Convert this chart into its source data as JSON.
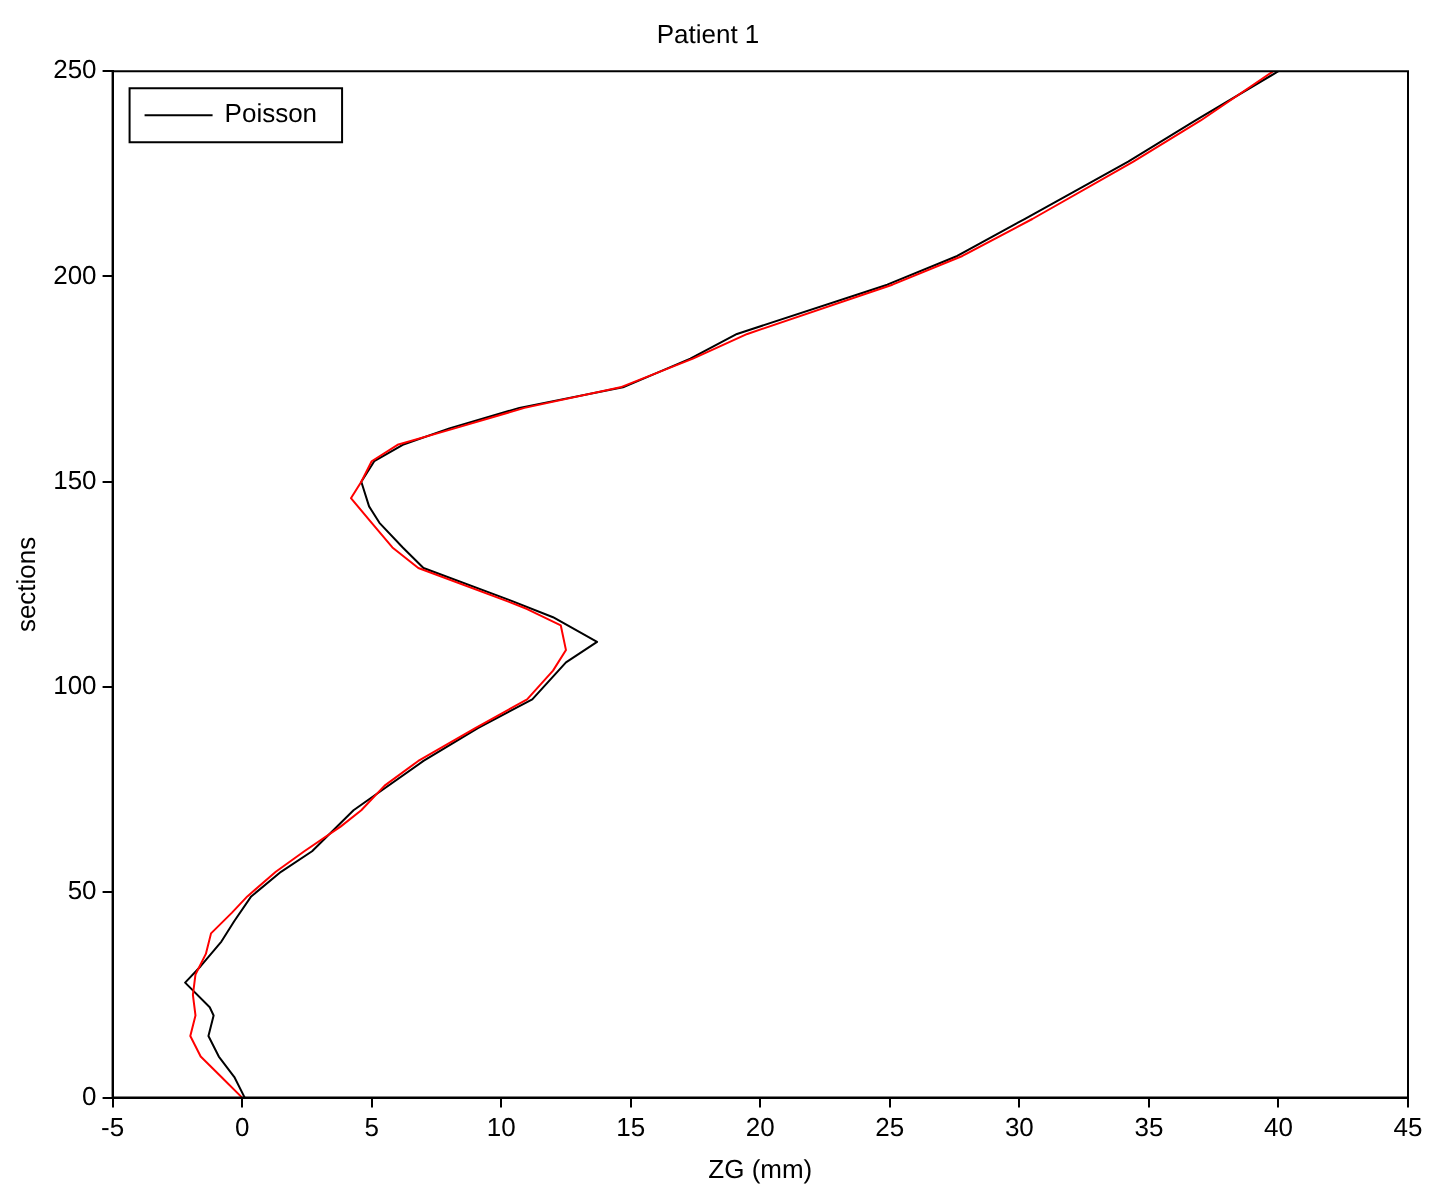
{
  "chart_data": {
    "type": "line",
    "title": "Patient 1",
    "xlabel": "ZG (mm)",
    "ylabel": "sections",
    "xlim": [
      -5,
      45
    ],
    "xticks": [
      -5,
      0,
      5,
      10,
      15,
      20,
      25,
      30,
      35,
      40,
      45
    ],
    "ylim": [
      0,
      250
    ],
    "yticks": [
      0,
      50,
      100,
      150,
      200,
      250
    ],
    "grid": false,
    "legend": "top left",
    "marker": "none",
    "line_style": "solid",
    "series": [
      {
        "color": "#ff0000",
        "x": [
          0,
          -0.8,
          -1.6,
          -2.0,
          -1.8,
          -1.9,
          -1.8,
          -1.4,
          -1.2,
          -0.4,
          0.2,
          1.3,
          2.4,
          3.8,
          4.6,
          5.5,
          6.8,
          9.0,
          11.0,
          12.0,
          12.5,
          12.3,
          11.0,
          10.2,
          6.8,
          5.8,
          5.0,
          4.2,
          4.6,
          5.0,
          6.0,
          8.2,
          10.9,
          14.6,
          17.4,
          19.5,
          25.1,
          27.8,
          30.5,
          34.4,
          37.0,
          39.8
        ],
        "values": [
          0,
          5,
          10,
          15,
          20,
          25,
          30,
          35,
          40,
          45,
          49,
          55,
          60,
          66,
          70,
          76,
          82,
          90,
          97,
          104,
          109,
          115,
          119,
          121,
          129,
          134,
          140,
          146,
          150,
          155,
          159,
          163,
          168,
          173,
          180,
          186,
          198,
          205,
          214,
          228,
          238,
          250
        ]
      },
      {
        "name": "Poisson",
        "color": "#000000",
        "x": [
          0.1,
          -0.3,
          -0.9,
          -1.3,
          -1.1,
          -1.25,
          -2.2,
          -1.6,
          -0.8,
          -0.3,
          0.35,
          1.5,
          2.7,
          4.3,
          7.0,
          9.1,
          11.2,
          12.5,
          13.7,
          12.0,
          10.4,
          7.0,
          6.2,
          5.3,
          4.9,
          4.6,
          5.1,
          6.2,
          8.0,
          10.7,
          14.7,
          17.3,
          19.1,
          24.9,
          27.6,
          30.2,
          34.2,
          36.8,
          40
        ],
        "values": [
          0,
          5,
          10,
          15,
          20,
          22,
          28,
          32,
          38,
          43,
          49,
          55,
          60,
          70,
          82,
          90,
          97,
          106,
          111,
          117,
          121,
          129,
          134,
          140,
          144,
          150,
          155,
          159,
          163,
          168,
          173,
          180,
          186,
          198,
          205,
          214,
          228,
          238,
          250
        ]
      }
    ]
  }
}
